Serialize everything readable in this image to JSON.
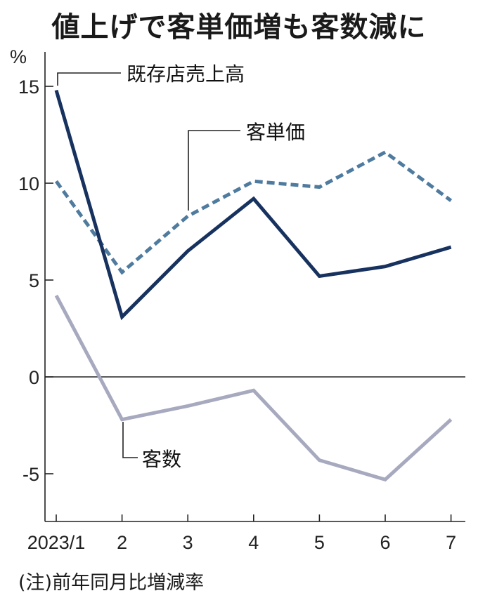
{
  "chart_data": {
    "type": "line",
    "title": "値上げで客単価増も客数減に",
    "ylabel": "%",
    "note": "(注)前年同月比増減率",
    "categories": [
      "2023/1",
      "2",
      "3",
      "4",
      "5",
      "6",
      "7"
    ],
    "yticks": [
      "15",
      "10",
      "5",
      "0",
      "-5"
    ],
    "ylim": [
      -7.5,
      16
    ],
    "grid": false,
    "series": [
      {
        "name": "既存店売上高",
        "values": [
          14.8,
          3.1,
          6.5,
          9.2,
          5.2,
          5.7,
          6.7
        ],
        "color": "#17325f",
        "style": "solid"
      },
      {
        "name": "客単価",
        "values": [
          10.1,
          5.4,
          8.3,
          10.1,
          9.8,
          11.6,
          9.1
        ],
        "color": "#4f7b9f",
        "style": "dashed"
      },
      {
        "name": "客数",
        "values": [
          4.2,
          -2.2,
          -1.5,
          -0.7,
          -4.3,
          -5.3,
          -2.2
        ],
        "color": "#a7a9bf",
        "style": "solid"
      }
    ]
  }
}
